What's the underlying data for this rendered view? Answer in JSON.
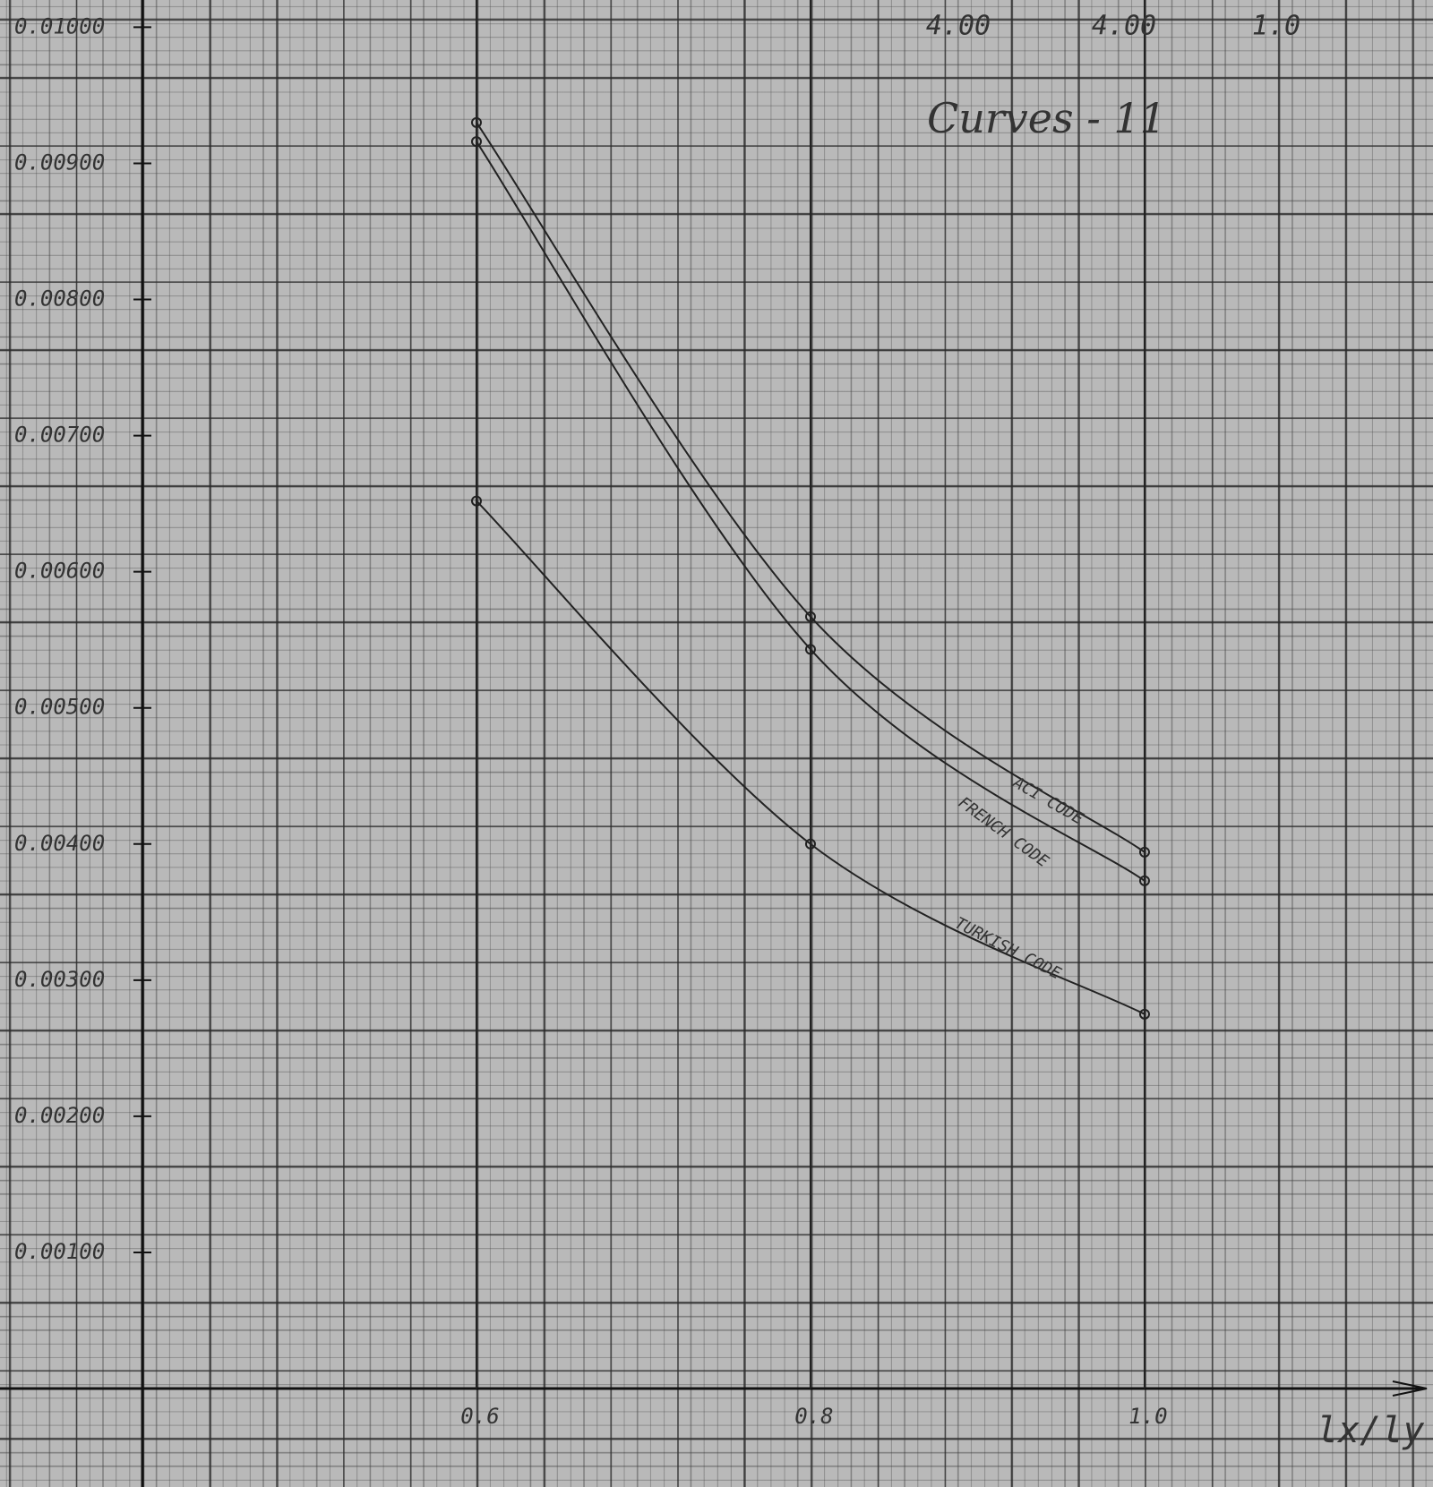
{
  "chart_data": {
    "type": "line",
    "title": "Curves - 11",
    "top_labels": [
      "4.00",
      "4.00",
      "1.0"
    ],
    "x_label": "lx/ly",
    "x": [
      0.6,
      0.8,
      {
        "value": 1,
        "label": "1.0"
      }
    ],
    "series": [
      {
        "name": "ACI CODE",
        "color": "#222222",
        "values": [
          0.0093,
          0.00567,
          0.00394
        ]
      },
      {
        "name": "FRENCH CODE",
        "color": "#222222",
        "values": [
          0.00916,
          0.00543,
          0.00373
        ]
      },
      {
        "name": "TURKISH CODE",
        "color": "#222222",
        "values": [
          0.00652,
          0.004,
          0.00275
        ]
      }
    ],
    "xlim": [
      0.4,
      1.17
    ],
    "ylim": [
      0,
      0.0102
    ],
    "yticks": [
      {
        "value": 0.001,
        "label": "0.00100"
      },
      {
        "value": 0.002,
        "label": "0.00200"
      },
      {
        "value": 0.003,
        "label": "0.00300"
      },
      {
        "value": 0.004,
        "label": "0.00400"
      },
      {
        "value": 0.005,
        "label": "0.00500"
      },
      {
        "value": 0.006,
        "label": "0.00600"
      },
      {
        "value": 0.007,
        "label": "0.00700"
      },
      {
        "value": 0.008,
        "label": "0.00800"
      },
      {
        "value": 0.009,
        "label": "0.00900"
      },
      {
        "value": 0.01,
        "label": "0.01000"
      }
    ],
    "xticks": [
      0.6,
      0.8,
      {
        "value": 1,
        "label": "1.0"
      }
    ]
  }
}
